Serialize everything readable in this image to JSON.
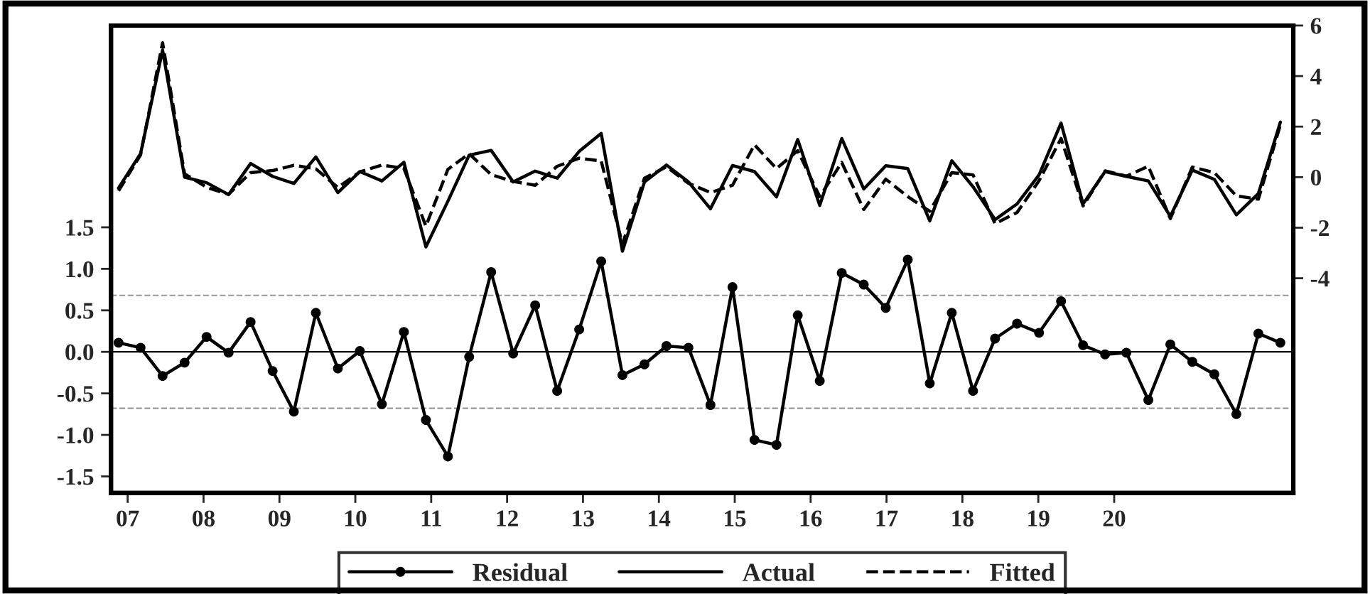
{
  "chart_data": {
    "type": "line",
    "x": [
      6.88,
      7.17,
      7.46,
      7.75,
      8.04,
      8.33,
      8.62,
      8.91,
      9.19,
      9.48,
      9.77,
      10.06,
      10.35,
      10.64,
      10.93,
      11.22,
      11.5,
      11.79,
      12.08,
      12.37,
      12.66,
      12.95,
      13.24,
      13.52,
      13.81,
      14.1,
      14.39,
      14.68,
      14.97,
      15.26,
      15.55,
      15.83,
      16.12,
      16.41,
      16.7,
      16.99,
      17.28,
      17.57,
      17.86,
      18.14,
      18.43,
      18.72,
      19.01,
      19.3,
      19.59,
      19.88,
      20.16,
      20.45,
      20.74,
      21.03,
      21.32,
      21.61,
      21.9,
      22.19
    ],
    "xlim": [
      6.78,
      22.36
    ],
    "xticks": [
      {
        "value": 7,
        "label": "07"
      },
      {
        "value": 8,
        "label": "08"
      },
      {
        "value": 9,
        "label": "09"
      },
      10,
      11,
      12,
      13,
      14,
      15,
      16,
      17,
      18,
      19,
      20
    ],
    "ylim": [
      -1.7,
      3.93
    ],
    "yticks": [
      {
        "value": -1.5,
        "label": "-1.5"
      },
      {
        "value": -1,
        "label": "-1.0"
      },
      {
        "value": -0.5,
        "label": "-0.5"
      },
      {
        "value": 0,
        "label": "0.0"
      },
      {
        "value": 0.5,
        "label": "0.5"
      },
      {
        "value": 1,
        "label": "1.0"
      },
      {
        "value": 1.5,
        "label": "1.5"
      }
    ],
    "y2lim": [
      -12.5,
      6
    ],
    "y2ticks": [
      -4,
      -2,
      0,
      2,
      4,
      6
    ],
    "ref_lines": [
      {
        "axis": "y",
        "value": 0,
        "color": "#000000",
        "line_style": "solid"
      },
      {
        "axis": "y",
        "value": 0.68,
        "color": "#999999",
        "line_style": "dashed"
      },
      {
        "axis": "y",
        "value": -0.68,
        "color": "#999999",
        "line_style": "dashed"
      }
    ],
    "legend": "bottom",
    "grid": false,
    "series": [
      {
        "name": "Residual",
        "color": "#000000",
        "axis": "y",
        "marker": "circle",
        "line_style": "solid",
        "values": [
          0.11,
          0.05,
          -0.29,
          -0.13,
          0.18,
          -0.01,
          0.36,
          -0.23,
          -0.72,
          0.47,
          -0.2,
          0.01,
          -0.63,
          0.24,
          -0.82,
          -1.26,
          -0.06,
          0.96,
          -0.02,
          0.56,
          -0.47,
          0.27,
          1.09,
          -0.28,
          -0.15,
          0.07,
          0.05,
          -0.64,
          0.78,
          -1.06,
          -1.12,
          0.44,
          -0.35,
          0.95,
          0.81,
          0.53,
          1.11,
          -0.38,
          0.47,
          -0.47,
          0.16,
          0.34,
          0.23,
          0.61,
          0.08,
          -0.03,
          -0.01,
          -0.58,
          0.09,
          -0.12,
          -0.27,
          -0.75,
          0.22,
          0.11
        ]
      },
      {
        "name": "Actual",
        "color": "#000000",
        "axis": "y2",
        "marker": "none",
        "line_style": "solid",
        "values": [
          -0.43,
          0.93,
          5.03,
          0.0,
          -0.22,
          -0.69,
          0.54,
          0.03,
          -0.25,
          0.8,
          -0.61,
          0.22,
          -0.15,
          0.59,
          -2.76,
          -0.95,
          0.87,
          1.06,
          -0.19,
          0.24,
          -0.04,
          1.02,
          1.73,
          -2.93,
          -0.19,
          0.48,
          -0.19,
          -1.25,
          0.46,
          0.22,
          -0.78,
          1.49,
          -1.12,
          1.53,
          -0.47,
          0.45,
          0.34,
          -1.73,
          0.65,
          -0.38,
          -1.68,
          -1.06,
          0.09,
          2.14,
          -1.06,
          0.22,
          0.03,
          -0.15,
          -1.55,
          0.28,
          -0.09,
          -1.49,
          -0.65,
          2.18
        ]
      },
      {
        "name": "Fitted",
        "color": "#000000",
        "axis": "y2",
        "marker": "none",
        "line_style": "dashed",
        "values": [
          -0.54,
          0.88,
          5.32,
          0.13,
          -0.4,
          -0.68,
          0.18,
          0.26,
          0.47,
          0.33,
          -0.41,
          0.21,
          0.48,
          0.35,
          -1.94,
          0.31,
          0.93,
          0.1,
          -0.17,
          -0.32,
          0.43,
          0.75,
          0.64,
          -2.65,
          -0.04,
          0.41,
          -0.24,
          -0.61,
          -0.32,
          1.28,
          0.34,
          1.05,
          -0.77,
          0.58,
          -1.28,
          -0.08,
          -0.77,
          -1.35,
          0.18,
          0.09,
          -1.84,
          -1.4,
          -0.14,
          1.53,
          -1.14,
          0.25,
          0.04,
          0.43,
          -1.64,
          0.4,
          0.18,
          -0.74,
          -0.87,
          2.07
        ]
      }
    ]
  }
}
